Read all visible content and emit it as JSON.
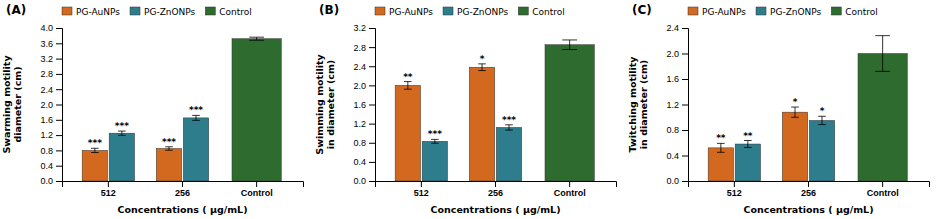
{
  "chart_data": [
    {
      "type": "bar",
      "title": "(A)",
      "x_label": "Concentrations ( μg/mL)",
      "y_label": "Swarming motility\ndiameter (cm)",
      "categories": [
        "512",
        "256",
        "Control"
      ],
      "series": [
        {
          "name": "PG-AuNPs",
          "color": "#D2691E",
          "values": [
            0.8,
            0.85,
            null
          ],
          "errors": [
            0.055,
            0.045,
            null
          ],
          "sig": [
            "***",
            "***",
            null
          ]
        },
        {
          "name": "PG-ZnONPs",
          "color": "#2E7D8C",
          "values": [
            1.25,
            1.65,
            null
          ],
          "errors": [
            0.055,
            0.065,
            null
          ],
          "sig": [
            "***",
            "***",
            null
          ]
        },
        {
          "name": "Control",
          "color": "#2E6B2E",
          "values": [
            null,
            null,
            3.72
          ],
          "errors": [
            null,
            null,
            0.04
          ],
          "sig": [
            null,
            null,
            null
          ]
        }
      ],
      "ylim": [
        0,
        4.0
      ],
      "yticks": [
        {
          "value": 0,
          "label": "0.0"
        },
        0.4,
        0.8,
        1.2,
        1.6,
        {
          "value": 2,
          "label": "2.0"
        },
        2.4,
        2.8,
        3.2,
        3.6,
        {
          "value": 4,
          "label": "4.0"
        }
      ],
      "grid": false,
      "legend": "upper left"
    },
    {
      "type": "bar",
      "title": "(B)",
      "x_label": "Concentrations ( μg/mL)",
      "y_label": "Swimming motility\nin diameter (cm)",
      "categories": [
        "512",
        "256",
        "Control"
      ],
      "series": [
        {
          "name": "PG-AuNPs",
          "color": "#D2691E",
          "values": [
            2.0,
            2.38,
            null
          ],
          "errors": [
            0.08,
            0.07,
            null
          ],
          "sig": [
            "**",
            "*",
            null
          ]
        },
        {
          "name": "PG-ZnONPs",
          "color": "#2E7D8C",
          "values": [
            0.83,
            1.12,
            null
          ],
          "errors": [
            0.04,
            0.055,
            null
          ],
          "sig": [
            "***",
            "***",
            null
          ]
        },
        {
          "name": "Control",
          "color": "#2E6B2E",
          "values": [
            null,
            null,
            2.85
          ],
          "errors": [
            null,
            null,
            0.1
          ],
          "sig": [
            null,
            null,
            null
          ]
        }
      ],
      "ylim": [
        0,
        3.2
      ],
      "yticks": [
        {
          "value": 0,
          "label": "0.0"
        },
        0.4,
        0.8,
        1.2,
        1.6,
        {
          "value": 2,
          "label": "2.0"
        },
        2.4,
        2.8,
        3.2
      ],
      "grid": false,
      "legend": "upper left"
    },
    {
      "type": "bar",
      "title": "(C)",
      "x_label": "Concentrations ( μg/mL)",
      "y_label": "Twitching motility\nin diameter (cm)",
      "categories": [
        "512",
        "256",
        "Control"
      ],
      "series": [
        {
          "name": "PG-AuNPs",
          "color": "#D2691E",
          "values": [
            0.52,
            1.08,
            null
          ],
          "errors": [
            0.07,
            0.08,
            null
          ],
          "sig": [
            "**",
            "*",
            null
          ]
        },
        {
          "name": "PG-ZnONPs",
          "color": "#2E7D8C",
          "values": [
            0.58,
            0.95,
            null
          ],
          "errors": [
            0.055,
            0.065,
            null
          ],
          "sig": [
            "**",
            "*",
            null
          ]
        },
        {
          "name": "Control",
          "color": "#2E6B2E",
          "values": [
            null,
            null,
            2.0
          ],
          "errors": [
            null,
            null,
            0.28
          ],
          "sig": [
            null,
            null,
            null
          ]
        }
      ],
      "ylim": [
        0,
        2.4
      ],
      "yticks": [
        {
          "value": 0,
          "label": "0.0"
        },
        0.4,
        0.8,
        1.2,
        1.6,
        {
          "value": 2,
          "label": "2.0"
        },
        2.4
      ],
      "grid": false,
      "legend": "upper left"
    }
  ]
}
